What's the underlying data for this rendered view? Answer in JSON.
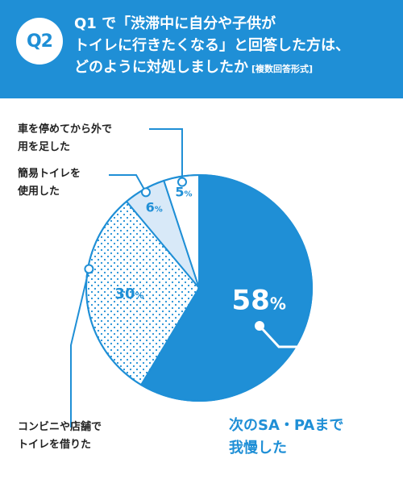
{
  "badge": "Q2",
  "question": {
    "lines": [
      "Q1 で「渋滞中に自分や子供が",
      "トイレに行きたくなる」と回答した方は、",
      "どのように対処しましたか"
    ],
    "note": "[複数回答形式]"
  },
  "colors": {
    "blue": "#1f8fd6",
    "light": "#d8e9f8",
    "white": "#ffffff",
    "dots": "#1f8fd6"
  },
  "chart_data": {
    "type": "pie",
    "slices": [
      {
        "label": "次のSA・PAまで我慢した",
        "value": 58,
        "display": "58",
        "style": "blue"
      },
      {
        "label": "コンビニや店舗でトイレを借りた",
        "value": 30,
        "display": "30",
        "style": "dots"
      },
      {
        "label": "簡易トイレを使用した",
        "value": 6,
        "display": "6",
        "style": "light"
      },
      {
        "label": "車を停めてから外で用を足した",
        "value": 5,
        "display": "5",
        "style": "white"
      }
    ],
    "unit": "%"
  },
  "labels": {
    "s0": [
      "次のSA・PAまで",
      "我慢した"
    ],
    "s1": [
      "コンビニや店舗で",
      "トイレを借りた"
    ],
    "s2": [
      "簡易トイレを",
      "使用した"
    ],
    "s3": [
      "車を停めてから外で",
      "用を足した"
    ]
  }
}
